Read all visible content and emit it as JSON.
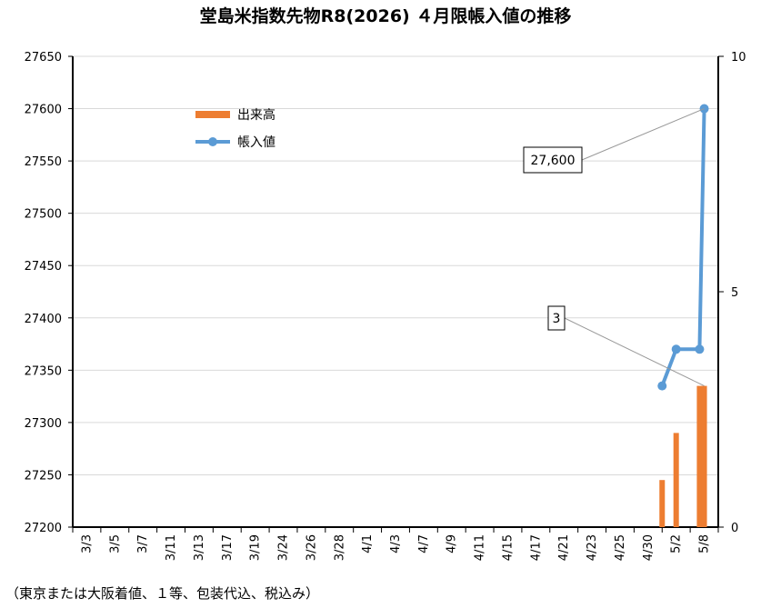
{
  "chart_data": {
    "type": "bar+line",
    "title": "堂島米指数先物R8(2026) ４月限帳入値の推移",
    "footnote": "（東京または大阪着値、１等、包装代込、税込み）",
    "categories": [
      "3/3",
      "3/5",
      "3/7",
      "3/11",
      "3/13",
      "3/17",
      "3/19",
      "3/24",
      "3/26",
      "3/28",
      "4/1",
      "4/3",
      "4/7",
      "4/9",
      "4/11",
      "4/15",
      "4/17",
      "4/21",
      "4/23",
      "4/25",
      "4/30",
      "5/2",
      "5/8"
    ],
    "left_axis": {
      "min": 27200,
      "max": 27650,
      "ticks": [
        27200,
        27250,
        27300,
        27350,
        27400,
        27450,
        27500,
        27550,
        27600,
        27650
      ]
    },
    "right_axis": {
      "min": 0,
      "max": 10,
      "ticks": [
        0,
        5,
        10
      ]
    },
    "grid": true,
    "legend": {
      "position": "top-left",
      "entries": [
        {
          "name": "出来高",
          "color": "#ED7D31",
          "kind": "bar"
        },
        {
          "name": "帳入値",
          "color": "#5B9BD5",
          "kind": "line"
        }
      ]
    },
    "volume_series": {
      "name": "出来高",
      "axis": "right",
      "color": "#ED7D31",
      "points": [
        {
          "x": "5/1",
          "value": 1
        },
        {
          "x": "5/2",
          "value": 2
        },
        {
          "x": "5/7",
          "value": 3
        },
        {
          "x": "5/8",
          "value": 3
        }
      ]
    },
    "settlement_series": {
      "name": "帳入値",
      "axis": "left",
      "color": "#5B9BD5",
      "points": [
        {
          "x": "5/1",
          "value": 27335
        },
        {
          "x": "5/2",
          "value": 27370
        },
        {
          "x": "5/7",
          "value": 27370
        },
        {
          "x": "5/8",
          "value": 27600
        }
      ]
    },
    "annotations": [
      {
        "text": "27,600",
        "target": "settlement_series.5/8"
      },
      {
        "text": "3",
        "target": "volume_series.5/8"
      }
    ]
  }
}
